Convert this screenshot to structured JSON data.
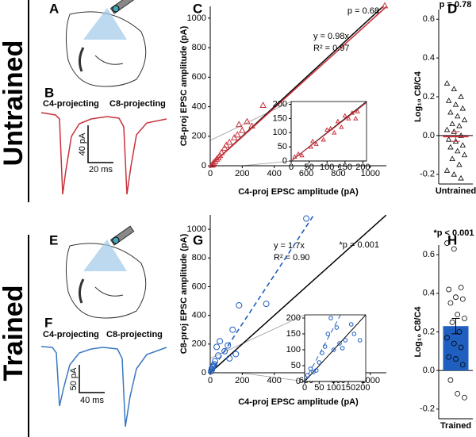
{
  "panels": {
    "labels": [
      "A",
      "B",
      "C",
      "D",
      "E",
      "F",
      "G",
      "H"
    ],
    "groups": [
      "Untrained",
      "Trained"
    ],
    "traces": [
      {
        "left": "C4-projecting",
        "right": "C8-projecting",
        "amp": "40 pA",
        "time": "20 ms"
      },
      {
        "left": "C4-projecting",
        "right": "C8-projecting",
        "amp": "50 pA",
        "time": "40 ms"
      }
    ]
  },
  "chart_data": [
    {
      "type": "scatter",
      "marker": "triangle",
      "color": "#c8323c",
      "inset": false,
      "fit_dashed": false,
      "identity_line": true,
      "x": [
        1090,
        330,
        260,
        230,
        200,
        180,
        170,
        150,
        120,
        100,
        90,
        70,
        60,
        50,
        40,
        30,
        20,
        15,
        10
      ],
      "values": [
        1085,
        410,
        270,
        300,
        240,
        280,
        210,
        190,
        160,
        140,
        120,
        90,
        70,
        55,
        45,
        30,
        20,
        10,
        5
      ],
      "fit_slope": 0.98,
      "fit_label": "y = 0.98x",
      "r2_label": "R² = 0.97",
      "p_label": "p = 0.68",
      "xlabel": "C4-proj EPSC amplitude (pA)",
      "ylabel": "C8-proj EPSC amplitude (pA)",
      "xlim": [
        0,
        1100
      ],
      "ylim": [
        0,
        1080
      ],
      "xticks": [
        0,
        200,
        400,
        600,
        800,
        1000
      ],
      "yticks": [
        0,
        200,
        400,
        600,
        800,
        1000
      ]
    },
    {
      "type": "scatter",
      "marker": "triangle",
      "color": "#c8323c",
      "inset": true,
      "fit_dashed": false,
      "identity_line": true,
      "x": [
        10,
        20,
        30,
        55,
        60,
        70,
        90,
        100,
        110,
        120,
        130,
        140,
        150,
        160,
        170,
        180,
        185
      ],
      "values": [
        15,
        25,
        20,
        50,
        70,
        60,
        75,
        110,
        115,
        100,
        140,
        120,
        160,
        150,
        170,
        150,
        175
      ],
      "fit_slope": 0.98,
      "xlim": [
        0,
        210
      ],
      "ylim": [
        0,
        210
      ],
      "xticks": [
        0,
        50,
        100,
        150,
        200
      ],
      "yticks": [
        0,
        50,
        100,
        150,
        200
      ]
    },
    {
      "type": "scatter",
      "marker": "circle",
      "color": "#1f5fbf",
      "inset": false,
      "fit_dashed": true,
      "identity_line": true,
      "x": [
        600,
        350,
        180,
        140,
        110,
        90,
        60,
        50,
        40,
        30,
        25,
        20,
        15,
        10,
        10,
        5,
        160,
        120
      ],
      "values": [
        1075,
        480,
        470,
        300,
        190,
        150,
        220,
        120,
        180,
        80,
        60,
        50,
        40,
        30,
        20,
        10,
        130,
        100
      ],
      "fit_slope": 1.7,
      "fit_label": "y = 1.7x",
      "r2_label": "R² = 0.90",
      "p_label": "*p = 0.001",
      "xlabel": "C4-proj EPSC amplitude (pA)",
      "ylabel": "C8-proj EPSC amplitude (pA)",
      "xlim": [
        0,
        1100
      ],
      "ylim": [
        0,
        1100
      ],
      "xticks": [
        0,
        200,
        400,
        600,
        800,
        1000
      ],
      "yticks": [
        0,
        200,
        400,
        600,
        800,
        1000
      ]
    },
    {
      "type": "scatter",
      "marker": "circle",
      "color": "#1f5fbf",
      "inset": true,
      "fit_dashed": true,
      "identity_line": true,
      "x": [
        10,
        20,
        30,
        40,
        50,
        60,
        70,
        80,
        90,
        100,
        110,
        120,
        130,
        140,
        160,
        170,
        190
      ],
      "values": [
        20,
        40,
        30,
        35,
        60,
        90,
        110,
        150,
        200,
        100,
        170,
        120,
        105,
        130,
        180,
        150,
        130
      ],
      "fit_slope": 1.7,
      "xlim": [
        0,
        210
      ],
      "ylim": [
        0,
        210
      ],
      "xticks": [
        0,
        50,
        100,
        150,
        200
      ],
      "yticks": [
        0,
        50,
        100,
        150,
        200
      ]
    },
    {
      "type": "dot",
      "marker": "triangle",
      "color": "#c8323c",
      "categories": [
        "Untrained"
      ],
      "values": [
        -0.005
      ],
      "errors": [
        0.025
      ],
      "points": [
        [
          0.27,
          0.24,
          0.2,
          0.18,
          0.16,
          0.14,
          0.12,
          0.1,
          0.08,
          0.06,
          0.05,
          0.03,
          0.02,
          0.0,
          -0.02,
          -0.03,
          -0.05,
          -0.06,
          -0.08,
          -0.1,
          -0.12,
          -0.15,
          -0.18,
          -0.2,
          -0.22
        ]
      ],
      "p_label": "p = 0.78",
      "ylabel": "Log₁₀ C8/C4",
      "ylim": [
        -0.25,
        0.65
      ],
      "yticks": [
        -0.2,
        {
          "value": 0,
          "label": "0.0"
        },
        0.2,
        0.4,
        0.6
      ]
    },
    {
      "type": "bar",
      "marker": "circle",
      "color": "#1f5fbf",
      "categories": [
        "Trained"
      ],
      "values": [
        0.23
      ],
      "errors": [
        0.04
      ],
      "points": [
        [
          0.66,
          0.63,
          0.43,
          0.42,
          0.38,
          0.37,
          0.35,
          0.29,
          0.27,
          0.25,
          0.2,
          0.17,
          0.14,
          0.12,
          0.07,
          0.06,
          0.03,
          -0.05,
          -0.12,
          -0.14
        ]
      ],
      "p_label": "*p < 0.001",
      "ylabel": "Log₁₀ C8/C4",
      "ylim": [
        -0.25,
        0.65
      ],
      "yticks": [
        -0.2,
        {
          "value": 0,
          "label": "0.0"
        },
        0.2,
        0.4,
        0.6
      ]
    }
  ]
}
